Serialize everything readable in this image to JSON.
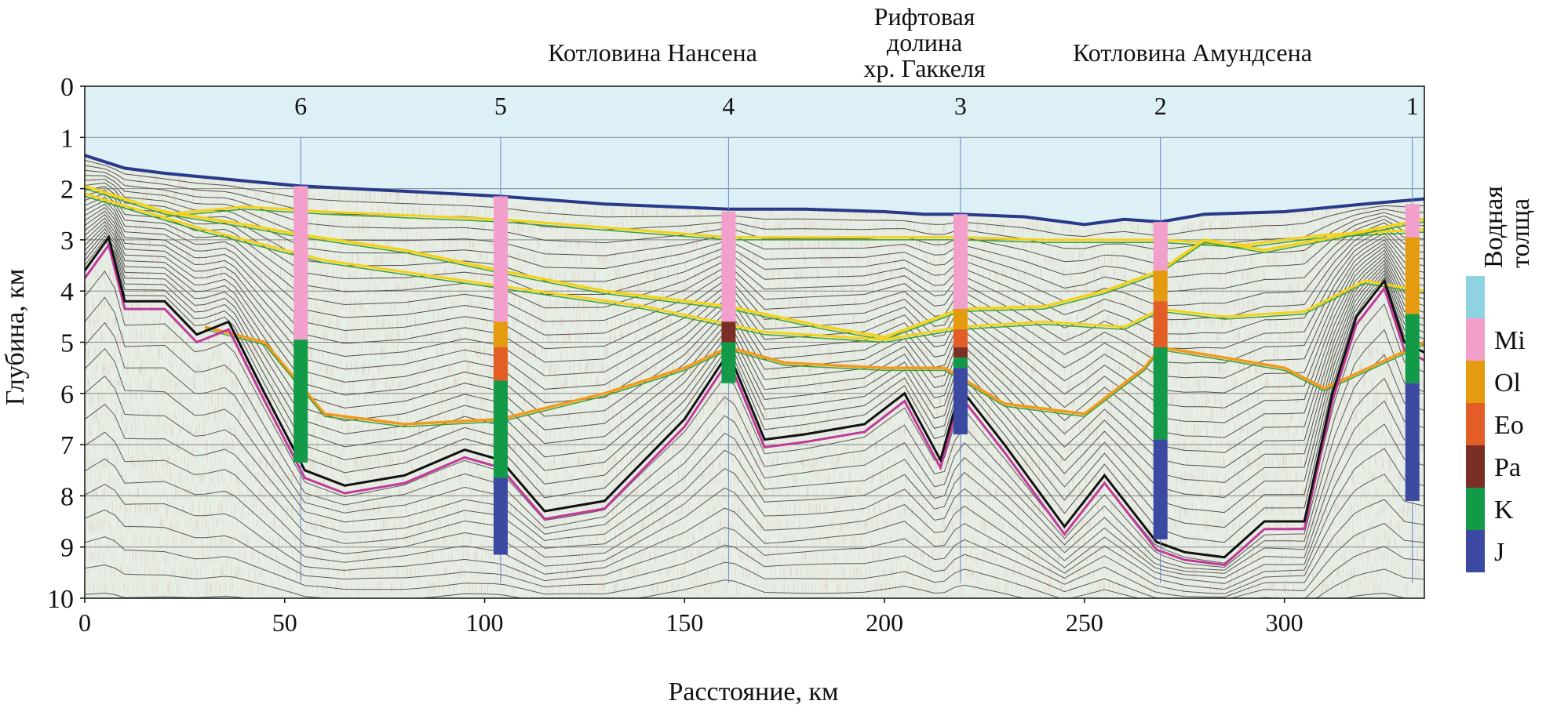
{
  "chart_data": {
    "type": "seismic-section",
    "xlabel": "Расстояние, км",
    "ylabel": "Глубина, км",
    "xlim": [
      0,
      335
    ],
    "ylim": [
      10,
      0
    ],
    "x_ticks": [
      0,
      50,
      100,
      150,
      200,
      250,
      300
    ],
    "y_ticks": [
      0,
      1,
      2,
      3,
      4,
      5,
      6,
      7,
      8,
      9,
      10
    ],
    "grid": true,
    "region_labels": [
      {
        "text": "Котловина Нансена",
        "x": 142
      },
      {
        "text": "Рифтовая\nдолина\nхр. Гаккеля",
        "x": 210
      },
      {
        "text": "Котловина Амундсена",
        "x": 277
      }
    ],
    "colors": {
      "water": "#dcf0f6",
      "Mi": "#f29fcc",
      "Ol": "#e49b0f",
      "Eo": "#e25e26",
      "Pa": "#7a2e26",
      "K": "#129a48",
      "J": "#3b4aa0",
      "seafloor": "#2a3a8a",
      "basement": "#c03a9a",
      "horizon_yellow": "#f2d21b",
      "horizon_green": "#3f9e3a",
      "horizon_orange": "#f29a1b"
    },
    "legend": {
      "water_label": "Водная\nтолща",
      "items": [
        {
          "code": "Mi",
          "label": "Mi"
        },
        {
          "code": "Ol",
          "label": "Ol"
        },
        {
          "code": "Eo",
          "label": "Eo"
        },
        {
          "code": "Pa",
          "label": "Pa"
        },
        {
          "code": "K",
          "label": "K"
        },
        {
          "code": "J",
          "label": "J"
        }
      ]
    },
    "wells": [
      {
        "label": "6",
        "x": 54,
        "intervals": [
          [
            "Mi",
            1.95,
            4.95
          ],
          [
            "K",
            4.95,
            7.35
          ]
        ]
      },
      {
        "label": "5",
        "x": 104,
        "intervals": [
          [
            "Mi",
            2.15,
            4.6
          ],
          [
            "Ol",
            4.6,
            5.1
          ],
          [
            "Eo",
            5.1,
            5.75
          ],
          [
            "K",
            5.75,
            7.65
          ],
          [
            "J",
            7.65,
            9.15
          ]
        ]
      },
      {
        "label": "4",
        "x": 161,
        "intervals": [
          [
            "Mi",
            2.45,
            4.6
          ],
          [
            "Pa",
            4.6,
            5.0
          ],
          [
            "K",
            5.0,
            5.8
          ]
        ]
      },
      {
        "label": "3",
        "x": 219,
        "intervals": [
          [
            "Mi",
            2.5,
            4.35
          ],
          [
            "Ol",
            4.35,
            4.75
          ],
          [
            "Eo",
            4.75,
            5.1
          ],
          [
            "Pa",
            5.1,
            5.3
          ],
          [
            "K",
            5.3,
            5.5
          ],
          [
            "J",
            5.5,
            6.8
          ]
        ]
      },
      {
        "label": "2",
        "x": 269,
        "intervals": [
          [
            "Mi",
            2.65,
            3.6
          ],
          [
            "Ol",
            3.6,
            4.2
          ],
          [
            "Eo",
            4.2,
            5.1
          ],
          [
            "K",
            5.1,
            6.9
          ],
          [
            "J",
            6.9,
            8.85
          ]
        ]
      },
      {
        "label": "1",
        "x": 332,
        "intervals": [
          [
            "Mi",
            2.3,
            2.95
          ],
          [
            "Ol",
            2.95,
            4.45
          ],
          [
            "K",
            4.45,
            5.8
          ],
          [
            "J",
            5.8,
            8.1
          ]
        ]
      }
    ],
    "seafloor": [
      [
        0,
        1.35
      ],
      [
        10,
        1.6
      ],
      [
        20,
        1.7
      ],
      [
        40,
        1.85
      ],
      [
        54,
        1.95
      ],
      [
        80,
        2.05
      ],
      [
        104,
        2.15
      ],
      [
        130,
        2.3
      ],
      [
        161,
        2.4
      ],
      [
        180,
        2.4
      ],
      [
        200,
        2.45
      ],
      [
        210,
        2.5
      ],
      [
        219,
        2.5
      ],
      [
        235,
        2.55
      ],
      [
        250,
        2.7
      ],
      [
        260,
        2.6
      ],
      [
        269,
        2.65
      ],
      [
        280,
        2.5
      ],
      [
        300,
        2.45
      ],
      [
        320,
        2.3
      ],
      [
        335,
        2.2
      ]
    ],
    "horizons": {
      "base_miocene": [
        [
          0,
          1.95
        ],
        [
          20,
          2.45
        ],
        [
          40,
          2.7
        ],
        [
          54,
          2.9
        ],
        [
          80,
          3.2
        ],
        [
          104,
          3.6
        ],
        [
          130,
          4.0
        ],
        [
          161,
          4.3
        ],
        [
          185,
          4.7
        ],
        [
          200,
          4.9
        ],
        [
          219,
          4.35
        ],
        [
          240,
          4.3
        ],
        [
          255,
          4.0
        ],
        [
          269,
          3.6
        ],
        [
          280,
          3.0
        ],
        [
          295,
          3.2
        ],
        [
          315,
          2.9
        ],
        [
          335,
          2.6
        ]
      ],
      "upper_yellow": [
        [
          0,
          2.1
        ],
        [
          30,
          2.8
        ],
        [
          60,
          3.4
        ],
        [
          104,
          3.9
        ],
        [
          140,
          4.3
        ],
        [
          170,
          4.8
        ],
        [
          200,
          4.95
        ],
        [
          219,
          4.7
        ],
        [
          240,
          4.6
        ],
        [
          260,
          4.7
        ],
        [
          269,
          4.35
        ],
        [
          285,
          4.5
        ],
        [
          305,
          4.4
        ],
        [
          320,
          3.8
        ],
        [
          335,
          4.0
        ]
      ],
      "shallow_yellow": [
        [
          20,
          2.5
        ],
        [
          40,
          2.35
        ],
        [
          60,
          2.45
        ],
        [
          104,
          2.6
        ],
        [
          161,
          2.95
        ],
        [
          200,
          2.95
        ],
        [
          219,
          2.95
        ],
        [
          240,
          3.0
        ],
        [
          269,
          3.0
        ],
        [
          290,
          3.1
        ],
        [
          310,
          2.9
        ],
        [
          335,
          2.8
        ]
      ],
      "deep_orange": [
        [
          30,
          4.7
        ],
        [
          45,
          5.0
        ],
        [
          60,
          6.4
        ],
        [
          80,
          6.6
        ],
        [
          104,
          6.5
        ],
        [
          130,
          6.0
        ],
        [
          150,
          5.5
        ],
        [
          161,
          5.1
        ],
        [
          175,
          5.4
        ],
        [
          200,
          5.5
        ],
        [
          215,
          5.5
        ],
        [
          230,
          6.2
        ],
        [
          250,
          6.4
        ],
        [
          265,
          5.5
        ],
        [
          269,
          5.1
        ],
        [
          285,
          5.3
        ],
        [
          300,
          5.5
        ],
        [
          310,
          5.9
        ],
        [
          335,
          5.0
        ]
      ],
      "basement": [
        [
          0,
          3.6
        ],
        [
          6,
          2.95
        ],
        [
          10,
          4.2
        ],
        [
          20,
          4.2
        ],
        [
          28,
          4.85
        ],
        [
          36,
          4.6
        ],
        [
          45,
          6.0
        ],
        [
          55,
          7.5
        ],
        [
          65,
          7.8
        ],
        [
          80,
          7.6
        ],
        [
          95,
          7.1
        ],
        [
          104,
          7.3
        ],
        [
          115,
          8.3
        ],
        [
          130,
          8.1
        ],
        [
          150,
          6.5
        ],
        [
          161,
          5.2
        ],
        [
          170,
          6.9
        ],
        [
          180,
          6.8
        ],
        [
          195,
          6.6
        ],
        [
          205,
          6.0
        ],
        [
          214,
          7.3
        ],
        [
          219,
          5.9
        ],
        [
          230,
          7.0
        ],
        [
          245,
          8.6
        ],
        [
          255,
          7.6
        ],
        [
          268,
          8.9
        ],
        [
          275,
          9.1
        ],
        [
          285,
          9.2
        ],
        [
          295,
          8.5
        ],
        [
          305,
          8.5
        ],
        [
          312,
          6.0
        ],
        [
          318,
          4.5
        ],
        [
          325,
          3.8
        ],
        [
          330,
          5.0
        ],
        [
          335,
          5.2
        ]
      ]
    }
  }
}
